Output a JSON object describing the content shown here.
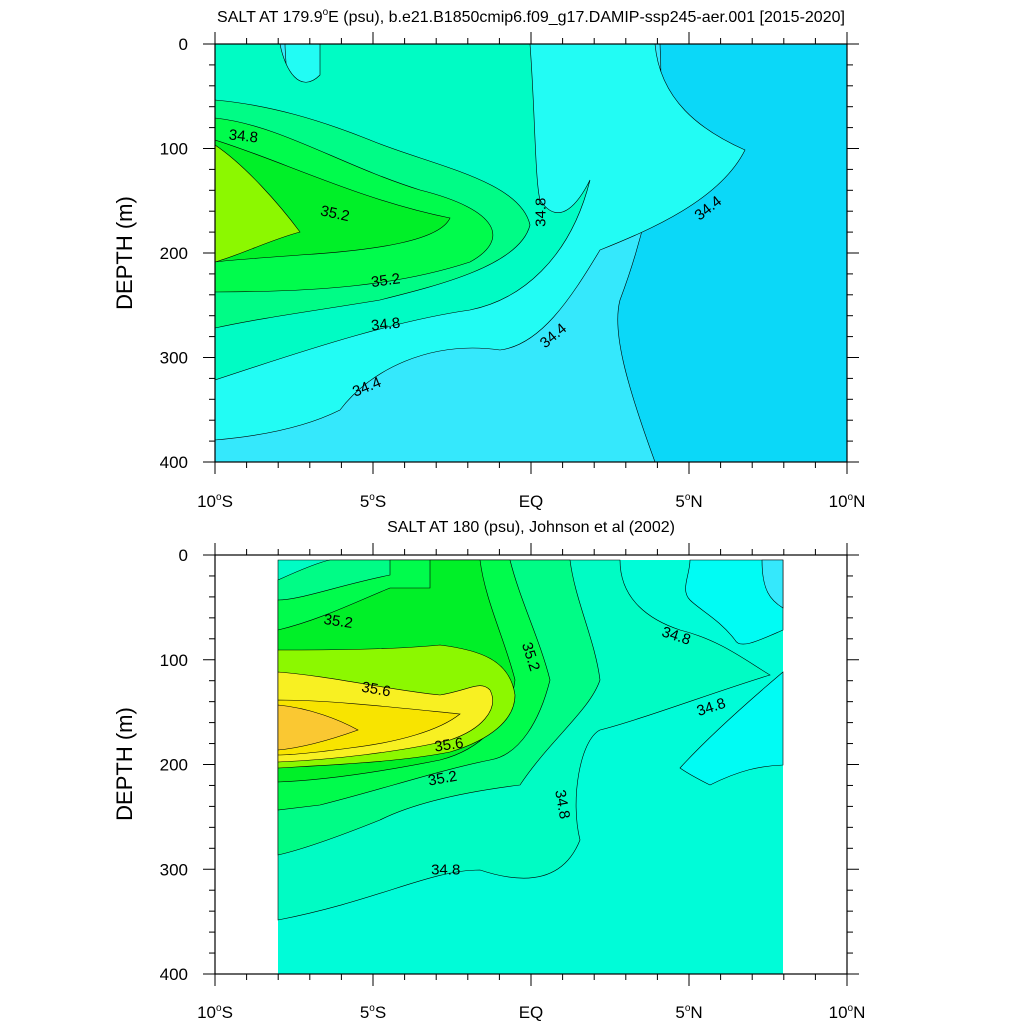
{
  "chart_data": [
    {
      "type": "contour",
      "title_main": "SALT AT 179.9",
      "title_sup": "o",
      "title_rest": "E (psu), b.e21.B1850cmip6.f09_g17.DAMIP-ssp245-aer.001 [2015-2020]",
      "ylabel": "DEPTH (m)",
      "xlabel": "",
      "xlim": [
        -10,
        10
      ],
      "ylim": [
        400,
        0
      ],
      "y_reversed": true,
      "x_ticks": [
        {
          "value": -10,
          "num": "10",
          "sup": "o",
          "hemi": "S"
        },
        {
          "value": -5,
          "num": "5",
          "sup": "o",
          "hemi": "S"
        },
        {
          "value": 0,
          "num": "EQ",
          "sup": "",
          "hemi": ""
        },
        {
          "value": 5,
          "num": "5",
          "sup": "o",
          "hemi": "N"
        },
        {
          "value": 10,
          "num": "10",
          "sup": "o",
          "hemi": "N"
        }
      ],
      "y_ticks": [
        "0",
        "100",
        "200",
        "300",
        "400"
      ],
      "y_tick_values": [
        0,
        100,
        200,
        300,
        400
      ],
      "data_extent_x": [
        -10,
        10
      ],
      "contour_levels": [
        34.2,
        34.4,
        34.6,
        34.8,
        35.0,
        35.2,
        35.4
      ],
      "contour_labels": [
        {
          "text": "34.8",
          "x": -9.1,
          "y": 88,
          "angle": 6
        },
        {
          "text": "35.2",
          "x": -6.2,
          "y": 162,
          "angle": 12
        },
        {
          "text": "35.2",
          "x": -4.6,
          "y": 226,
          "angle": -8
        },
        {
          "text": "34.8",
          "x": -4.6,
          "y": 268,
          "angle": -6
        },
        {
          "text": "34.4",
          "x": -5.2,
          "y": 328,
          "angle": -22
        },
        {
          "text": "34.8",
          "x": 0.3,
          "y": 161,
          "angle": -90
        },
        {
          "text": "34.4",
          "x": 0.7,
          "y": 279,
          "angle": -40
        },
        {
          "text": "34.4",
          "x": 5.6,
          "y": 157,
          "angle": -38
        }
      ]
    },
    {
      "type": "contour",
      "title_main": "SALT AT 180 (psu), Johnson et al (2002)",
      "title_sup": "",
      "title_rest": "",
      "ylabel": "DEPTH (m)",
      "xlabel": "",
      "xlim": [
        -10,
        10
      ],
      "ylim": [
        400,
        0
      ],
      "y_reversed": true,
      "x_ticks": [
        {
          "value": -10,
          "num": "10",
          "sup": "o",
          "hemi": "S"
        },
        {
          "value": -5,
          "num": "5",
          "sup": "o",
          "hemi": "S"
        },
        {
          "value": 0,
          "num": "EQ",
          "sup": "",
          "hemi": ""
        },
        {
          "value": 5,
          "num": "5",
          "sup": "o",
          "hemi": "N"
        },
        {
          "value": 10,
          "num": "10",
          "sup": "o",
          "hemi": "N"
        }
      ],
      "y_ticks": [
        "0",
        "100",
        "200",
        "300",
        "400"
      ],
      "y_tick_values": [
        0,
        100,
        200,
        300,
        400
      ],
      "data_extent_x": [
        -8,
        8
      ],
      "contour_levels": [
        34.6,
        34.8,
        35.0,
        35.2,
        35.4,
        35.6,
        35.8
      ],
      "contour_labels": [
        {
          "text": "35.2",
          "x": -6.1,
          "y": 63,
          "angle": 8
        },
        {
          "text": "35.6",
          "x": -4.9,
          "y": 128,
          "angle": 10
        },
        {
          "text": "35.6",
          "x": -2.6,
          "y": 181,
          "angle": -8
        },
        {
          "text": "35.2",
          "x": -2.8,
          "y": 213,
          "angle": -10
        },
        {
          "text": "35.2",
          "x": 0.0,
          "y": 97,
          "angle": 72
        },
        {
          "text": "34.8",
          "x": 1.0,
          "y": 238,
          "angle": 80
        },
        {
          "text": "34.8",
          "x": -2.7,
          "y": 300,
          "angle": 0
        },
        {
          "text": "34.8",
          "x": 4.6,
          "y": 77,
          "angle": 18
        },
        {
          "text": "34.8",
          "x": 5.7,
          "y": 145,
          "angle": -18
        }
      ]
    }
  ]
}
